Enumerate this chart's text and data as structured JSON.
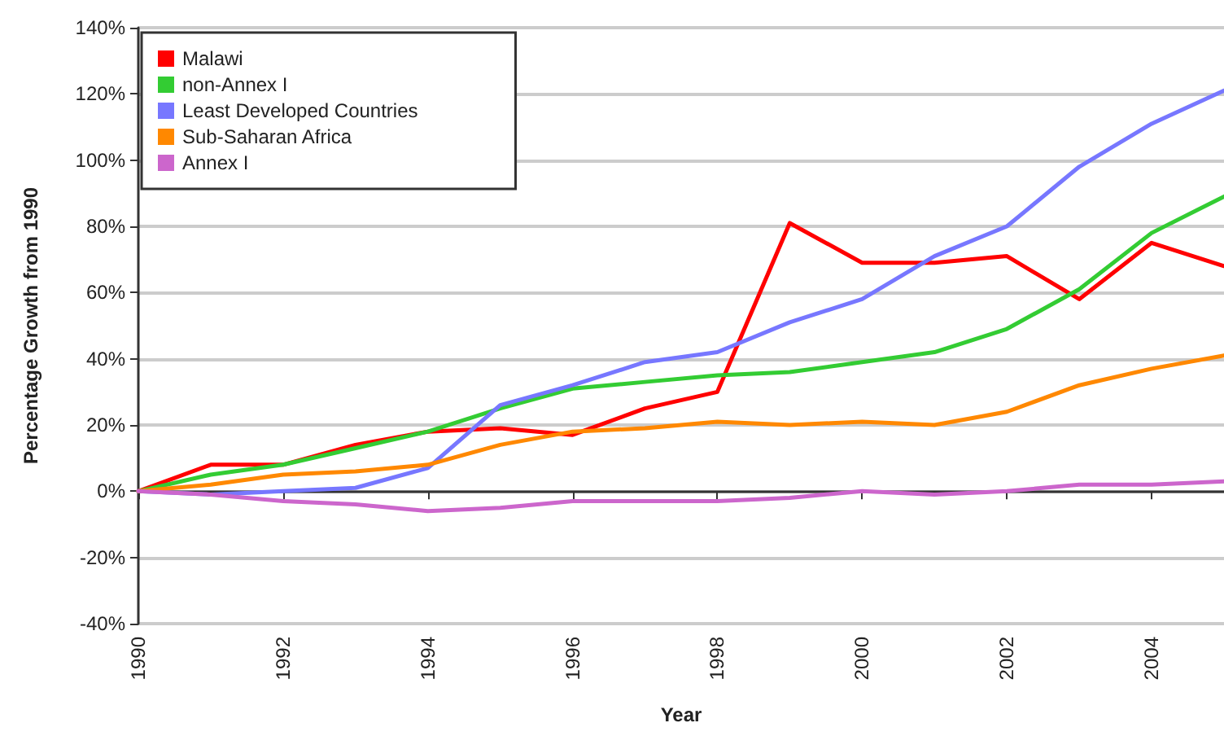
{
  "chart_data": {
    "type": "line",
    "xlabel": "Year",
    "ylabel": "Percentage Growth from 1990",
    "x": [
      1990,
      1991,
      1992,
      1993,
      1994,
      1995,
      1996,
      1997,
      1998,
      1999,
      2000,
      2001,
      2002,
      2003,
      2004,
      2005
    ],
    "series": [
      {
        "name": "Malawi",
        "color": "#ff0000",
        "values": [
          0,
          8,
          8,
          14,
          18,
          19,
          17,
          25,
          30,
          81,
          69,
          69,
          71,
          58,
          75,
          68
        ]
      },
      {
        "name": "non-Annex I",
        "color": "#33cc33",
        "values": [
          0,
          5,
          8,
          13,
          18,
          25,
          31,
          33,
          35,
          36,
          39,
          42,
          49,
          61,
          78,
          89
        ]
      },
      {
        "name": "Least Developed Countries",
        "color": "#7777ff",
        "values": [
          0,
          -1,
          0,
          1,
          7,
          26,
          32,
          39,
          42,
          51,
          58,
          71,
          80,
          98,
          111,
          121
        ]
      },
      {
        "name": "Sub-Saharan Africa",
        "color": "#ff8800",
        "values": [
          0,
          2,
          5,
          6,
          8,
          14,
          18,
          19,
          21,
          20,
          21,
          20,
          24,
          32,
          37,
          41
        ]
      },
      {
        "name": "Annex I",
        "color": "#cc66cc",
        "values": [
          0,
          -1,
          -3,
          -4,
          -6,
          -5,
          -3,
          -3,
          -3,
          -2,
          0,
          -1,
          0,
          2,
          2,
          3
        ]
      }
    ],
    "xlim": [
      1990,
      2005
    ],
    "xticks": [
      1990,
      1992,
      1994,
      1996,
      1998,
      2000,
      2002,
      2004
    ],
    "ylim": [
      -40,
      140
    ],
    "yticks": [
      {
        "value": -40,
        "label": "-40%"
      },
      {
        "value": -20,
        "label": "-20%"
      },
      {
        "value": 0,
        "label": "0%"
      },
      {
        "value": 20,
        "label": "20%"
      },
      {
        "value": 40,
        "label": "40%"
      },
      {
        "value": 60,
        "label": "60%"
      },
      {
        "value": 80,
        "label": "80%"
      },
      {
        "value": 100,
        "label": "100%"
      },
      {
        "value": 120,
        "label": "120%"
      },
      {
        "value": 140,
        "label": "140%"
      }
    ],
    "grid": "y",
    "legend": "top left",
    "marker": "none",
    "line_style": "solid"
  }
}
